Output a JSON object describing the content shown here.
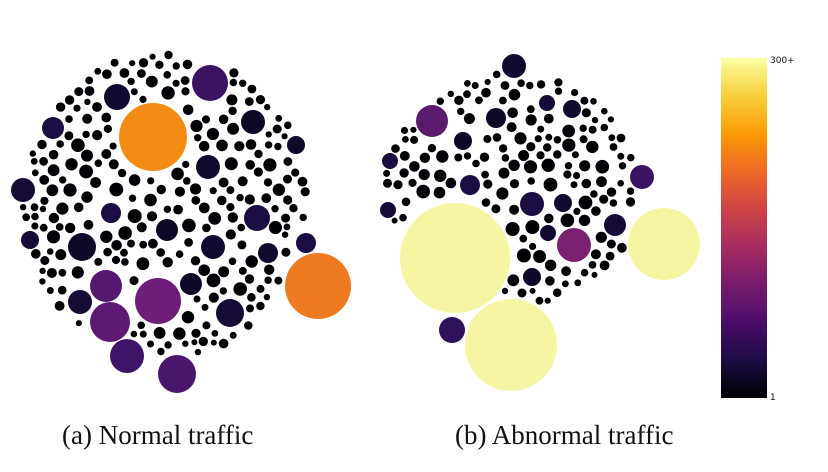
{
  "chart_data": [
    {
      "type": "bubble-pack",
      "caption": "(a) Normal traffic",
      "small_bubbles": "hundreds of small dark bubbles (values near 1)",
      "highlighted_bubbles": [
        {
          "value": 240,
          "color": "#F28C14"
        },
        {
          "value": 225,
          "color": "#EE7A22"
        },
        {
          "value": 120,
          "color": "#6E1E78"
        },
        {
          "value": 110,
          "color": "#5E1A73"
        },
        {
          "value": 100,
          "color": "#551870"
        },
        {
          "value": 95,
          "color": "#4A166B"
        },
        {
          "value": 90,
          "color": "#3E1468"
        },
        {
          "value": 85,
          "color": "#3A1462"
        }
      ]
    },
    {
      "type": "bubble-pack",
      "caption": "(b) Abnormal traffic",
      "small_bubbles": "hundreds of small dark bubbles (values near 1)",
      "highlighted_bubbles": [
        {
          "value": 300,
          "color": "#F6F5A4"
        },
        {
          "value": 300,
          "color": "#F6F5A4"
        },
        {
          "value": 300,
          "color": "#F6F5A4"
        },
        {
          "value": 130,
          "color": "#7A2170"
        },
        {
          "value": 110,
          "color": "#5A1A6E"
        },
        {
          "value": 80,
          "color": "#3A1462"
        },
        {
          "value": 70,
          "color": "#2E125A"
        }
      ]
    }
  ],
  "colorbar": {
    "colormap": "inferno",
    "max_label": "300+",
    "min_label": "1",
    "stops": [
      "#000004",
      "#1b0c41",
      "#4a0c6b",
      "#781c6d",
      "#a52c60",
      "#cf4446",
      "#ed6925",
      "#fb9b06",
      "#f7d13d",
      "#fcffa4"
    ]
  },
  "captions": {
    "a": "(a) Normal traffic",
    "b": "(b) Abnormal traffic"
  }
}
